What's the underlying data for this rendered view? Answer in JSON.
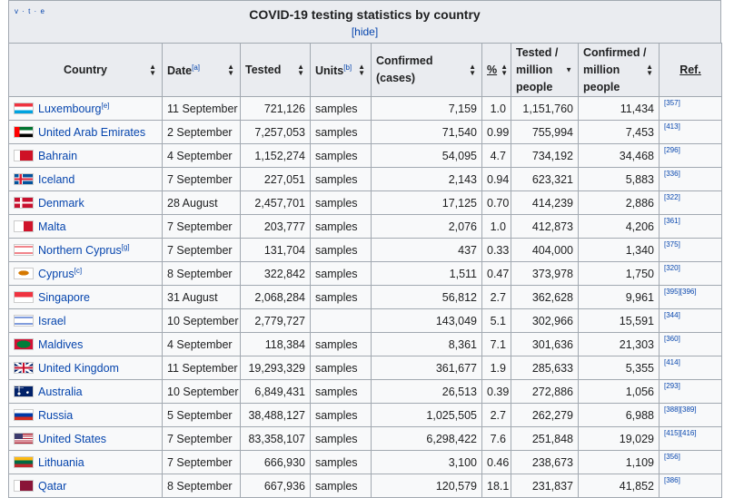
{
  "navbox": {
    "vte": "v · t · e",
    "title": "COVID-19 testing statistics by country",
    "hide": "[hide]"
  },
  "headers": {
    "country": "Country",
    "date": "Date",
    "date_note": "[a]",
    "tested": "Tested",
    "units": "Units",
    "units_note": "[b]",
    "confirmed": "Confirmed (cases)",
    "percent": "%",
    "tested_per_million": "Tested / million people",
    "confirmed_per_million": "Confirmed / million people",
    "ref": "Ref."
  },
  "rows": [
    {
      "country": "Luxembourg",
      "note": "[e]",
      "date": "11 September",
      "tested": "721,126",
      "units": "samples",
      "confirmed": "7,159",
      "percent": "1.0",
      "tested_pm": "1,151,760",
      "confirmed_pm": "11,434",
      "ref": "[357]",
      "flag": "lu"
    },
    {
      "country": "United Arab Emirates",
      "note": "",
      "date": "2 September",
      "tested": "7,257,053",
      "units": "samples",
      "confirmed": "71,540",
      "percent": "0.99",
      "tested_pm": "755,994",
      "confirmed_pm": "7,453",
      "ref": "[413]",
      "flag": "ae"
    },
    {
      "country": "Bahrain",
      "note": "",
      "date": "4 September",
      "tested": "1,152,274",
      "units": "samples",
      "confirmed": "54,095",
      "percent": "4.7",
      "tested_pm": "734,192",
      "confirmed_pm": "34,468",
      "ref": "[296]",
      "flag": "bh"
    },
    {
      "country": "Iceland",
      "note": "",
      "date": "7 September",
      "tested": "227,051",
      "units": "samples",
      "confirmed": "2,143",
      "percent": "0.94",
      "tested_pm": "623,321",
      "confirmed_pm": "5,883",
      "ref": "[336]",
      "flag": "is"
    },
    {
      "country": "Denmark",
      "note": "",
      "date": "28 August",
      "tested": "2,457,701",
      "units": "samples",
      "confirmed": "17,125",
      "percent": "0.70",
      "tested_pm": "414,239",
      "confirmed_pm": "2,886",
      "ref": "[322]",
      "flag": "dk"
    },
    {
      "country": "Malta",
      "note": "",
      "date": "7 September",
      "tested": "203,777",
      "units": "samples",
      "confirmed": "2,076",
      "percent": "1.0",
      "tested_pm": "412,873",
      "confirmed_pm": "4,206",
      "ref": "[361]",
      "flag": "mt"
    },
    {
      "country": "Northern Cyprus",
      "note": "[g]",
      "date": "7 September",
      "tested": "131,704",
      "units": "samples",
      "confirmed": "437",
      "percent": "0.33",
      "tested_pm": "404,000",
      "confirmed_pm": "1,340",
      "ref": "[375]",
      "flag": "nc"
    },
    {
      "country": "Cyprus",
      "note": "[c]",
      "date": "8 September",
      "tested": "322,842",
      "units": "samples",
      "confirmed": "1,511",
      "percent": "0.47",
      "tested_pm": "373,978",
      "confirmed_pm": "1,750",
      "ref": "[320]",
      "flag": "cy"
    },
    {
      "country": "Singapore",
      "note": "",
      "date": "31 August",
      "tested": "2,068,284",
      "units": "samples",
      "confirmed": "56,812",
      "percent": "2.7",
      "tested_pm": "362,628",
      "confirmed_pm": "9,961",
      "ref": "[395][396]",
      "flag": "sg"
    },
    {
      "country": "Israel",
      "note": "",
      "date": "10 September",
      "tested": "2,779,727",
      "units": "",
      "confirmed": "143,049",
      "percent": "5.1",
      "tested_pm": "302,966",
      "confirmed_pm": "15,591",
      "ref": "[344]",
      "flag": "il"
    },
    {
      "country": "Maldives",
      "note": "",
      "date": "4 September",
      "tested": "118,384",
      "units": "samples",
      "confirmed": "8,361",
      "percent": "7.1",
      "tested_pm": "301,636",
      "confirmed_pm": "21,303",
      "ref": "[360]",
      "flag": "mv"
    },
    {
      "country": "United Kingdom",
      "note": "",
      "date": "11 September",
      "tested": "19,293,329",
      "units": "samples",
      "confirmed": "361,677",
      "percent": "1.9",
      "tested_pm": "285,633",
      "confirmed_pm": "5,355",
      "ref": "[414]",
      "flag": "gb"
    },
    {
      "country": "Australia",
      "note": "",
      "date": "10 September",
      "tested": "6,849,431",
      "units": "samples",
      "confirmed": "26,513",
      "percent": "0.39",
      "tested_pm": "272,886",
      "confirmed_pm": "1,056",
      "ref": "[293]",
      "flag": "au"
    },
    {
      "country": "Russia",
      "note": "",
      "date": "5 September",
      "tested": "38,488,127",
      "units": "samples",
      "confirmed": "1,025,505",
      "percent": "2.7",
      "tested_pm": "262,279",
      "confirmed_pm": "6,988",
      "ref": "[388][389]",
      "flag": "ru"
    },
    {
      "country": "United States",
      "note": "",
      "date": "7 September",
      "tested": "83,358,107",
      "units": "samples",
      "confirmed": "6,298,422",
      "percent": "7.6",
      "tested_pm": "251,848",
      "confirmed_pm": "19,029",
      "ref": "[415][416]",
      "flag": "us"
    },
    {
      "country": "Lithuania",
      "note": "",
      "date": "7 September",
      "tested": "666,930",
      "units": "samples",
      "confirmed": "3,100",
      "percent": "0.46",
      "tested_pm": "238,673",
      "confirmed_pm": "1,109",
      "ref": "[356]",
      "flag": "lt"
    },
    {
      "country": "Qatar",
      "note": "",
      "date": "8 September",
      "tested": "667,936",
      "units": "samples",
      "confirmed": "120,579",
      "percent": "18.1",
      "tested_pm": "231,837",
      "confirmed_pm": "41,852",
      "ref": "[386]",
      "flag": "qa"
    }
  ],
  "flag_colors": {
    "lu": [
      "#ef3340",
      "#ffffff",
      "#00a3e0"
    ],
    "ae": [
      "#00732f",
      "#ffffff",
      "#000000",
      "#ff0000"
    ],
    "bh": [
      "#ffffff",
      "#ce1126"
    ],
    "is": [
      "#02529c",
      "#ffffff",
      "#dc1e35"
    ],
    "dk": [
      "#c8102e",
      "#ffffff"
    ],
    "mt": [
      "#ffffff",
      "#cf142b"
    ],
    "nc": [
      "#ffffff",
      "#e30a17"
    ],
    "cy": [
      "#ffffff",
      "#d57800"
    ],
    "sg": [
      "#ef3340",
      "#ffffff"
    ],
    "il": [
      "#ffffff",
      "#0038b8"
    ],
    "mv": [
      "#d21034",
      "#007e3a"
    ],
    "gb": [
      "#012169",
      "#ffffff",
      "#c8102e"
    ],
    "au": [
      "#012169",
      "#ffffff"
    ],
    "ru": [
      "#ffffff",
      "#0039a6",
      "#d52b1e"
    ],
    "us": [
      "#b22234",
      "#ffffff",
      "#3c3b6e"
    ],
    "lt": [
      "#fdb913",
      "#006a44",
      "#c1272d"
    ],
    "qa": [
      "#ffffff",
      "#8a1538"
    ]
  }
}
